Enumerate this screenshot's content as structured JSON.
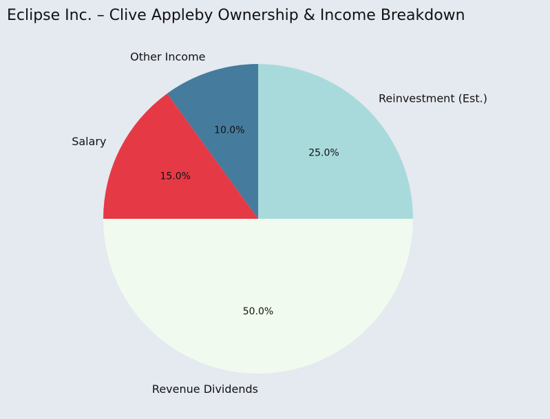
{
  "chart_data": {
    "type": "pie",
    "title": "Eclipse Inc. – Clive Appleby Ownership & Income Breakdown",
    "start_angle_deg": 90,
    "direction": "counterclockwise",
    "slices": [
      {
        "label": "Other Income",
        "value": 10.0,
        "pct_label": "10.0%",
        "color": "#457b9d"
      },
      {
        "label": "Salary",
        "value": 15.0,
        "pct_label": "15.0%",
        "color": "#e63946"
      },
      {
        "label": "Revenue Dividends",
        "value": 50.0,
        "pct_label": "50.0%",
        "color": "#f1faee"
      },
      {
        "label": "Reinvestment (Est.)",
        "value": 25.0,
        "pct_label": "25.0%",
        "color": "#a8dadc"
      }
    ]
  },
  "colors": {
    "background": "#e5e9f0",
    "text": "#111111"
  }
}
